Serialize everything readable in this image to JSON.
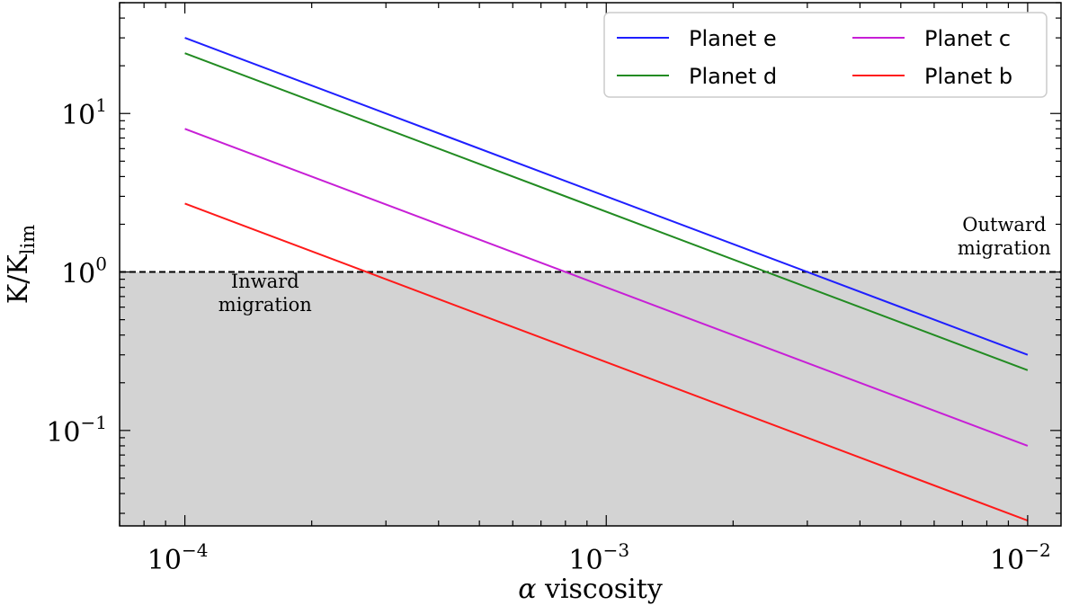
{
  "chart_data": {
    "type": "line",
    "xlabel_symbol": "α",
    "xlabel_text": "viscosity",
    "ylabel_main": "K/K",
    "ylabel_sub": "lim",
    "xscale": "log",
    "yscale": "log",
    "xlim": [
      7e-05,
      0.012
    ],
    "ylim": [
      0.025,
      50
    ],
    "x_ticks": [
      {
        "value": 0.0001,
        "base": "10",
        "exp": "−4"
      },
      {
        "value": 0.001,
        "base": "10",
        "exp": "−3"
      },
      {
        "value": 0.01,
        "base": "10",
        "exp": "−2"
      }
    ],
    "y_ticks": [
      {
        "value": 0.1,
        "base": "10",
        "exp": "−1"
      },
      {
        "value": 1,
        "base": "10",
        "exp": "0"
      },
      {
        "value": 10,
        "base": "10",
        "exp": "1"
      }
    ],
    "grid": false,
    "legend_position": "top-right",
    "legend_columns": 2,
    "threshold": {
      "y": 1,
      "style": "dashed",
      "color": "#000000"
    },
    "shaded_region": {
      "below_y": 1,
      "color": "#d3d3d3"
    },
    "annotations": [
      {
        "lines": [
          "Outward",
          "migration"
        ],
        "x": 0.0088,
        "y": 1.55
      },
      {
        "lines": [
          "Inward",
          "migration"
        ],
        "x": 0.000155,
        "y": 0.68
      }
    ],
    "series": [
      {
        "name": "Planet e",
        "color": "#1f1fff",
        "x": [
          0.0001,
          0.01
        ],
        "y": [
          30,
          0.3
        ]
      },
      {
        "name": "Planet d",
        "color": "#228b22",
        "x": [
          0.0001,
          0.01
        ],
        "y": [
          24,
          0.24
        ]
      },
      {
        "name": "Planet c",
        "color": "#c71fd6",
        "x": [
          0.0001,
          0.01
        ],
        "y": [
          8,
          0.08
        ]
      },
      {
        "name": "Planet b",
        "color": "#ff1a1a",
        "x": [
          0.0001,
          0.01
        ],
        "y": [
          2.7,
          0.027
        ]
      }
    ]
  }
}
